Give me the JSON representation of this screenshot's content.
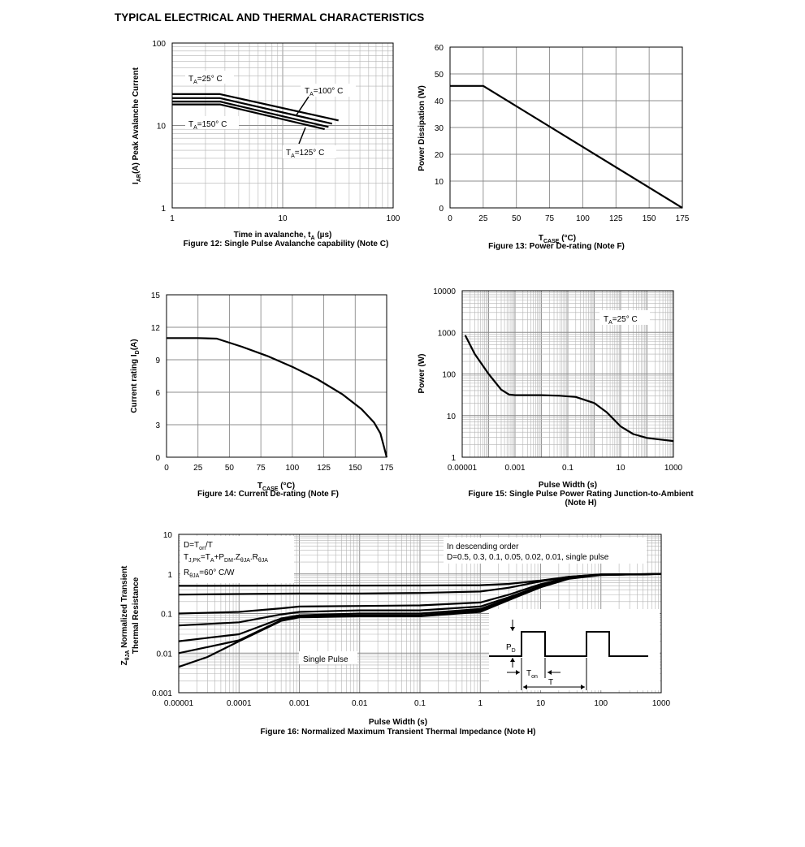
{
  "title": "TYPICAL ELECTRICAL AND THERMAL CHARACTERISTICS",
  "chart_data": [
    {
      "id": "fig12",
      "type": "line",
      "x_scale": "log",
      "y_scale": "log",
      "xlim": [
        1,
        100
      ],
      "ylim": [
        1,
        100
      ],
      "xticks": [
        "1",
        "10",
        "100"
      ],
      "yticks": [
        "1",
        "10",
        "100"
      ],
      "xlabel_main": "Time in avalanche, t",
      "xlabel_sub": "A",
      "xlabel_unit": " (µs)",
      "ylabel_pre": "I",
      "ylabel_sub": "AR",
      "ylabel_main": "(A) Peak Avalanche Current",
      "caption": "Figure 12: Single Pulse Avalanche capability (Note C)",
      "series": [
        {
          "name": "TA=25° C",
          "label_sub": "A",
          "label_pre": "T",
          "label_post": "=25° C",
          "x": [
            1,
            2.7,
            32
          ],
          "y": [
            24,
            24,
            11.5
          ]
        },
        {
          "name": "TA=100° C",
          "label_sub": "A",
          "label_pre": "T",
          "label_post": "=100° C",
          "x": [
            1,
            2.7,
            28
          ],
          "y": [
            21.5,
            21.5,
            10.5
          ]
        },
        {
          "name": "TA=125° C",
          "label_sub": "A",
          "label_pre": "T",
          "label_post": "=125° C",
          "x": [
            1,
            2.7,
            26
          ],
          "y": [
            19.5,
            19.5,
            9.6
          ]
        },
        {
          "name": "TA=150° C",
          "label_sub": "A",
          "label_pre": "T",
          "label_post": "=150° C",
          "x": [
            1,
            2.7,
            24
          ],
          "y": [
            18,
            18,
            9.0
          ]
        }
      ]
    },
    {
      "id": "fig13",
      "type": "line",
      "xlim": [
        0,
        175
      ],
      "ylim": [
        0,
        60
      ],
      "xticks": [
        "0",
        "25",
        "50",
        "75",
        "100",
        "125",
        "150",
        "175"
      ],
      "yticks": [
        "0",
        "10",
        "20",
        "30",
        "40",
        "50",
        "60"
      ],
      "xlabel_pre": "T",
      "xlabel_sub": "CASE",
      "xlabel_unit": " (°C)",
      "ylabel": "Power Dissipation (W)",
      "caption": "Figure 13: Power De-rating (Note F)",
      "series": [
        {
          "name": "PD",
          "x": [
            0,
            25,
            175
          ],
          "y": [
            45.5,
            45.5,
            0
          ]
        }
      ]
    },
    {
      "id": "fig14",
      "type": "line",
      "xlim": [
        0,
        175
      ],
      "ylim": [
        0,
        15
      ],
      "xticks": [
        "0",
        "25",
        "50",
        "75",
        "100",
        "125",
        "150",
        "175"
      ],
      "yticks": [
        "0",
        "3",
        "6",
        "9",
        "12",
        "15"
      ],
      "xlabel_pre": "T",
      "xlabel_sub": "CASE",
      "xlabel_unit": " (°C)",
      "ylabel_pre": "Current rating I",
      "ylabel_sub": "D",
      "ylabel_unit": "(A)",
      "caption": "Figure 14: Current De-rating (Note F)",
      "series": [
        {
          "name": "ID",
          "x": [
            0,
            25,
            40,
            60,
            80,
            100,
            120,
            140,
            155,
            165,
            170,
            173,
            175
          ],
          "y": [
            11,
            11,
            10.95,
            10.2,
            9.35,
            8.35,
            7.2,
            5.8,
            4.45,
            3.2,
            2.2,
            0.9,
            0
          ]
        }
      ]
    },
    {
      "id": "fig15",
      "type": "line",
      "x_scale": "log",
      "y_scale": "log",
      "xlim": [
        1e-05,
        1000
      ],
      "ylim": [
        1,
        10000
      ],
      "xticks": [
        "0.00001",
        "0.001",
        "0.1",
        "10",
        "1000"
      ],
      "yticks": [
        "1",
        "10",
        "100",
        "1000",
        "10000"
      ],
      "xlabel": "Pulse Width (s)",
      "ylabel": "Power (W)",
      "annotation": {
        "pre": "T",
        "sub": "A",
        "post": "=25° C"
      },
      "caption": "Figure 15: Single Pulse Power Rating Junction-to-Ambient (Note H)",
      "series": [
        {
          "name": "Power",
          "x": [
            1.3e-05,
            3e-05,
            0.0001,
            0.0003,
            0.0006,
            0.001,
            0.01,
            0.05,
            0.2,
            1,
            3,
            10,
            30,
            100,
            1000
          ],
          "y": [
            850,
            300,
            100,
            42,
            32,
            31,
            31,
            30,
            28,
            20,
            12,
            5.5,
            3.6,
            2.9,
            2.45
          ]
        }
      ]
    },
    {
      "id": "fig16",
      "type": "line",
      "x_scale": "log",
      "y_scale": "log",
      "xlim": [
        1e-05,
        1000
      ],
      "ylim": [
        0.001,
        10
      ],
      "xticks": [
        "0.00001",
        "0.0001",
        "0.001",
        "0.01",
        "0.1",
        "1",
        "10",
        "100",
        "1000"
      ],
      "yticks": [
        "0.001",
        "0.01",
        "0.1",
        "1",
        "10"
      ],
      "xlabel": "Pulse Width (s)",
      "ylabel_line1_pre": "Z",
      "ylabel_line1_sub": "θJA",
      "ylabel_line1_post": " Normalized Transient",
      "ylabel_line2": "Thermal Resistance",
      "legend_left": {
        "l1_pre": "D=T",
        "l1_sub": "on",
        "l1_post": "/T",
        "l2_pre": "T",
        "l2_sub1": "J,PK",
        "l2_mid1": "=T",
        "l2_sub2": "A",
        "l2_mid2": "+P",
        "l2_sub3": "DM",
        "l2_mid3": ".Z",
        "l2_sub4": "θJA",
        "l2_mid4": ".R",
        "l2_sub5": "θJA",
        "l3_pre": "R",
        "l3_sub": "θJA",
        "l3_post": "=60° C/W"
      },
      "legend_right": {
        "l1": "In descending order",
        "l2": "D=0.5, 0.3, 0.1, 0.05, 0.02, 0.01, single pulse"
      },
      "single_pulse_label": "Single Pulse",
      "inset": {
        "pn_pre": "P",
        "pn_sub": "D",
        "ton_pre": "T",
        "ton_sub": "on",
        "t": "T"
      },
      "caption": "Figure 16: Normalized Maximum Transient Thermal Impedance (Note H)",
      "series": [
        {
          "name": "D=0.5",
          "x": [
            1e-05,
            0.001,
            0.1,
            1,
            3,
            10,
            30,
            100,
            1000
          ],
          "y": [
            0.5,
            0.505,
            0.51,
            0.52,
            0.56,
            0.68,
            0.85,
            0.97,
            1.0
          ]
        },
        {
          "name": "D=0.3",
          "x": [
            1e-05,
            0.0001,
            0.001,
            0.01,
            0.1,
            1,
            3,
            10,
            30,
            100,
            1000
          ],
          "y": [
            0.3,
            0.31,
            0.32,
            0.32,
            0.33,
            0.36,
            0.45,
            0.65,
            0.85,
            0.97,
            1.0
          ]
        },
        {
          "name": "D=0.1",
          "x": [
            1e-05,
            0.0001,
            0.0005,
            0.001,
            0.01,
            0.1,
            1,
            3,
            10,
            30,
            100,
            1000
          ],
          "y": [
            0.1,
            0.11,
            0.135,
            0.15,
            0.155,
            0.16,
            0.19,
            0.3,
            0.55,
            0.82,
            0.96,
            1.0
          ]
        },
        {
          "name": "D=0.05",
          "x": [
            1e-05,
            0.0001,
            0.0005,
            0.001,
            0.01,
            0.1,
            1,
            3,
            10,
            30,
            100,
            1000
          ],
          "y": [
            0.05,
            0.06,
            0.095,
            0.11,
            0.12,
            0.12,
            0.15,
            0.26,
            0.5,
            0.8,
            0.95,
            1.0
          ]
        },
        {
          "name": "D=0.02",
          "x": [
            1e-05,
            0.0001,
            0.0005,
            0.001,
            0.01,
            0.1,
            1,
            3,
            10,
            30,
            100,
            1000
          ],
          "y": [
            0.02,
            0.03,
            0.075,
            0.09,
            0.1,
            0.1,
            0.13,
            0.24,
            0.48,
            0.78,
            0.95,
            1.0
          ]
        },
        {
          "name": "D=0.01",
          "x": [
            1e-05,
            0.0001,
            0.0005,
            0.001,
            0.01,
            0.1,
            1,
            3,
            10,
            30,
            100,
            1000
          ],
          "y": [
            0.01,
            0.021,
            0.068,
            0.085,
            0.09,
            0.09,
            0.12,
            0.23,
            0.47,
            0.77,
            0.95,
            1.0
          ]
        },
        {
          "name": "single pulse",
          "x": [
            1e-05,
            3e-05,
            0.0001,
            0.0005,
            0.001,
            0.01,
            0.1,
            1,
            3,
            10,
            30,
            100,
            1000
          ],
          "y": [
            0.0045,
            0.008,
            0.02,
            0.065,
            0.08,
            0.085,
            0.085,
            0.11,
            0.22,
            0.46,
            0.76,
            0.94,
            1.0
          ]
        }
      ]
    }
  ]
}
